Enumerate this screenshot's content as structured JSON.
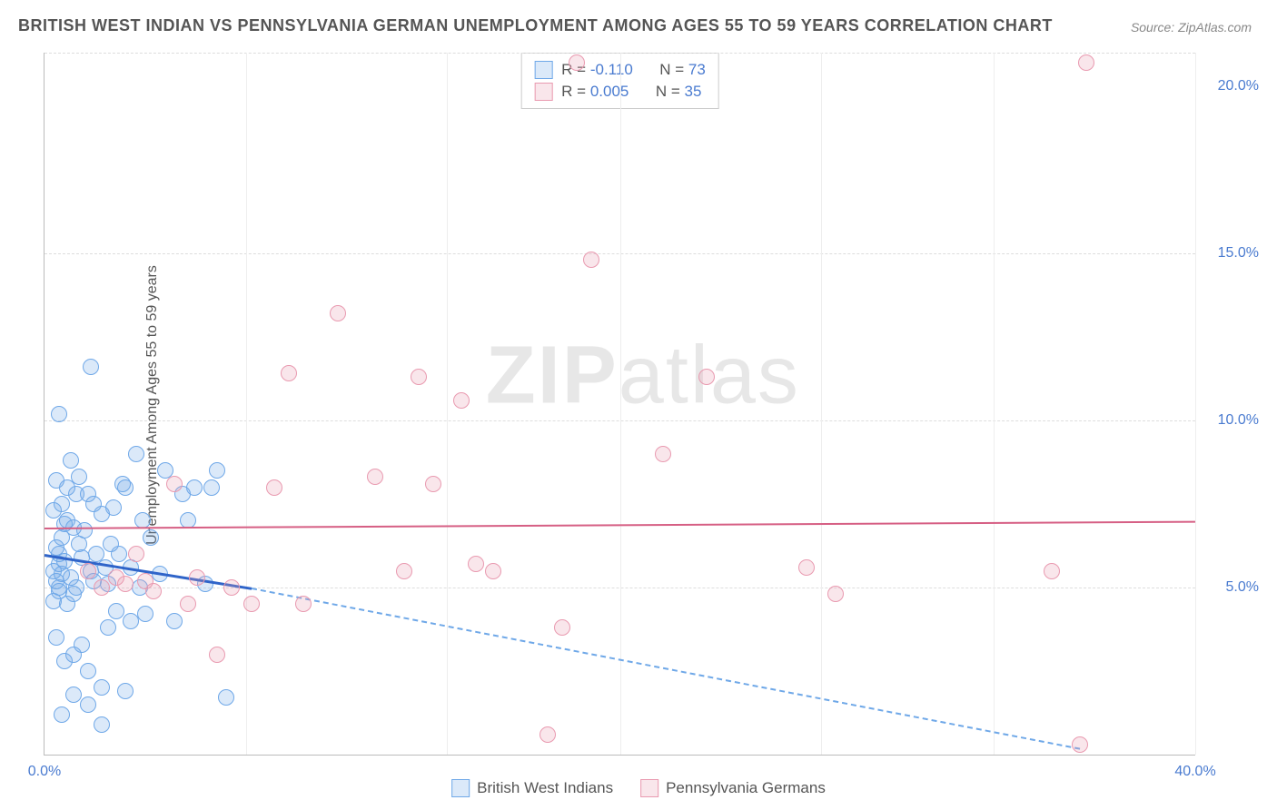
{
  "title": "BRITISH WEST INDIAN VS PENNSYLVANIA GERMAN UNEMPLOYMENT AMONG AGES 55 TO 59 YEARS CORRELATION CHART",
  "source": "Source: ZipAtlas.com",
  "watermark_a": "ZIP",
  "watermark_b": "atlas",
  "ylabel": "Unemployment Among Ages 55 to 59 years",
  "chart": {
    "type": "scatter",
    "background_color": "#ffffff",
    "grid_color": "#dddddd",
    "axis_color": "#bbbbbb",
    "tick_color": "#4a7bd0",
    "tick_fontsize": 16,
    "xlim": [
      0,
      40
    ],
    "ylim": [
      0,
      21
    ],
    "xticks": [
      0,
      40
    ],
    "xtick_labels": [
      "0.0%",
      "40.0%"
    ],
    "yticks": [
      5,
      10,
      15,
      20
    ],
    "ytick_labels": [
      "5.0%",
      "10.0%",
      "15.0%",
      "20.0%"
    ],
    "gridlines_y": [
      5,
      10,
      15,
      21
    ],
    "gridlines_x": [
      7,
      14,
      20,
      27,
      33,
      40
    ],
    "marker_radius": 9,
    "marker_stroke_width": 1.5,
    "marker_fill_opacity": 0.25,
    "series": [
      {
        "name": "British West Indians",
        "color": "#6fa8e8",
        "fill": "rgba(111,168,232,0.25)",
        "r": "-0.110",
        "n": "73",
        "trend": {
          "x1": 0,
          "y1": 6.0,
          "x2": 7.2,
          "y2": 5.0,
          "color": "#2f64c9",
          "width": 3
        },
        "trend_ext": {
          "x1": 7.2,
          "y1": 5.0,
          "x2": 36,
          "y2": 0.2,
          "color": "#6fa8e8",
          "dash": true
        },
        "points": [
          [
            0.3,
            5.5
          ],
          [
            0.5,
            6.0
          ],
          [
            0.4,
            5.2
          ],
          [
            0.6,
            6.5
          ],
          [
            0.7,
            5.8
          ],
          [
            0.5,
            4.9
          ],
          [
            0.8,
            7.0
          ],
          [
            0.9,
            5.3
          ],
          [
            1.0,
            6.8
          ],
          [
            1.1,
            5.0
          ],
          [
            0.3,
            4.6
          ],
          [
            0.6,
            7.5
          ],
          [
            0.8,
            8.0
          ],
          [
            1.2,
            6.3
          ],
          [
            1.3,
            5.9
          ],
          [
            0.4,
            8.2
          ],
          [
            1.5,
            7.8
          ],
          [
            1.6,
            5.5
          ],
          [
            1.8,
            6.0
          ],
          [
            2.0,
            7.2
          ],
          [
            2.2,
            5.1
          ],
          [
            2.5,
            4.3
          ],
          [
            2.7,
            8.1
          ],
          [
            2.8,
            8.0
          ],
          [
            3.0,
            4.0
          ],
          [
            3.2,
            9.0
          ],
          [
            3.3,
            5.0
          ],
          [
            0.5,
            10.2
          ],
          [
            1.6,
            11.6
          ],
          [
            0.4,
            3.5
          ],
          [
            0.7,
            2.8
          ],
          [
            1.0,
            3.0
          ],
          [
            1.3,
            3.3
          ],
          [
            1.5,
            2.5
          ],
          [
            2.0,
            2.0
          ],
          [
            2.2,
            3.8
          ],
          [
            2.8,
            1.9
          ],
          [
            3.5,
            4.2
          ],
          [
            0.9,
            8.8
          ],
          [
            1.2,
            8.3
          ],
          [
            1.7,
            7.5
          ],
          [
            2.3,
            6.3
          ],
          [
            3.7,
            6.5
          ],
          [
            4.0,
            5.4
          ],
          [
            4.2,
            8.5
          ],
          [
            4.5,
            4.0
          ],
          [
            4.8,
            7.8
          ],
          [
            5.6,
            5.1
          ],
          [
            5.8,
            8.0
          ],
          [
            6.0,
            8.5
          ],
          [
            6.3,
            1.7
          ],
          [
            2.0,
            0.9
          ],
          [
            1.5,
            1.5
          ],
          [
            1.0,
            1.8
          ],
          [
            0.6,
            1.2
          ],
          [
            5.0,
            7.0
          ],
          [
            0.4,
            6.2
          ],
          [
            0.3,
            7.3
          ],
          [
            0.5,
            5.7
          ],
          [
            0.7,
            6.9
          ],
          [
            0.8,
            4.5
          ],
          [
            1.0,
            4.8
          ],
          [
            1.1,
            7.8
          ],
          [
            1.4,
            6.7
          ],
          [
            1.7,
            5.2
          ],
          [
            2.1,
            5.6
          ],
          [
            2.4,
            7.4
          ],
          [
            2.6,
            6.0
          ],
          [
            3.0,
            5.6
          ],
          [
            3.4,
            7.0
          ],
          [
            0.5,
            5.0
          ],
          [
            0.6,
            5.4
          ],
          [
            5.2,
            8.0
          ]
        ]
      },
      {
        "name": "Pennsylvania Germans",
        "color": "#e99ab0",
        "fill": "rgba(233,154,176,0.25)",
        "r": "0.005",
        "n": "35",
        "trend": {
          "x1": 0,
          "y1": 6.8,
          "x2": 40,
          "y2": 7.0,
          "color": "#d65f84",
          "width": 2
        },
        "points": [
          [
            1.5,
            5.5
          ],
          [
            2.0,
            5.0
          ],
          [
            2.5,
            5.3
          ],
          [
            3.2,
            6.0
          ],
          [
            3.5,
            5.2
          ],
          [
            3.8,
            4.9
          ],
          [
            4.5,
            8.1
          ],
          [
            5.0,
            4.5
          ],
          [
            5.3,
            5.3
          ],
          [
            6.0,
            3.0
          ],
          [
            6.5,
            5.0
          ],
          [
            7.2,
            4.5
          ],
          [
            8.0,
            8.0
          ],
          [
            8.5,
            11.4
          ],
          [
            9.0,
            4.5
          ],
          [
            10.2,
            13.2
          ],
          [
            11.5,
            8.3
          ],
          [
            12.5,
            5.5
          ],
          [
            13.0,
            11.3
          ],
          [
            13.5,
            8.1
          ],
          [
            14.5,
            10.6
          ],
          [
            15.0,
            5.7
          ],
          [
            15.6,
            5.5
          ],
          [
            17.5,
            0.6
          ],
          [
            18.0,
            3.8
          ],
          [
            18.5,
            20.7
          ],
          [
            19.0,
            14.8
          ],
          [
            21.5,
            9.0
          ],
          [
            23.0,
            11.3
          ],
          [
            26.5,
            5.6
          ],
          [
            27.5,
            4.8
          ],
          [
            35.0,
            5.5
          ],
          [
            36.0,
            0.3
          ],
          [
            36.2,
            20.7
          ],
          [
            2.8,
            5.1
          ]
        ]
      }
    ],
    "stats_box_labels": {
      "r_prefix": "R = ",
      "n_prefix": "N = "
    },
    "legend_labels": [
      "British West Indians",
      "Pennsylvania Germans"
    ]
  }
}
